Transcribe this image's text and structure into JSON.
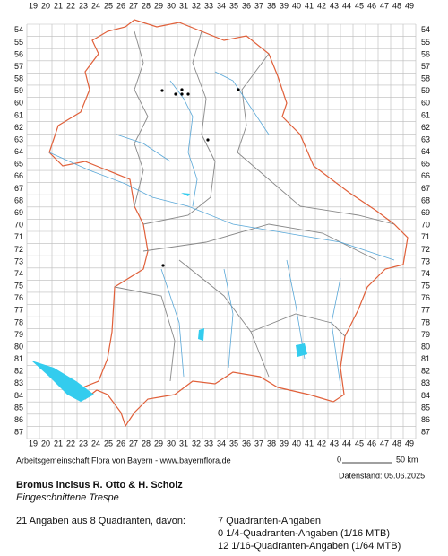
{
  "map": {
    "columns": [
      19,
      20,
      21,
      22,
      23,
      24,
      25,
      26,
      27,
      28,
      29,
      30,
      31,
      32,
      33,
      34,
      35,
      36,
      37,
      38,
      39,
      40,
      41,
      42,
      43,
      44,
      45,
      46,
      47,
      48,
      49
    ],
    "rows": [
      54,
      55,
      56,
      57,
      58,
      59,
      60,
      61,
      62,
      63,
      64,
      65,
      66,
      67,
      68,
      69,
      70,
      71,
      72,
      73,
      74,
      75,
      76,
      77,
      78,
      79,
      80,
      81,
      82,
      83,
      84,
      85,
      86,
      87
    ]
  },
  "footer": {
    "credit": "Arbeitsgemeinschaft Flora von Bayern - www.bayernflora.de",
    "scale_start": "0",
    "scale_end": "50 km",
    "date": "Datenstand: 05.06.2025"
  },
  "species": {
    "name": "Bromus incisus R. Otto & H. Scholz",
    "common_name": "Eingeschnittene Trespe"
  },
  "summary": {
    "total": "21 Angaben aus 8 Quadranten, davon:",
    "lines": [
      "7 Quadranten-Angaben",
      "0 1/4-Quadranten-Angaben (1/16 MTB)",
      "12 1/16-Quadranten-Angaben (1/64 MTB)"
    ]
  }
}
